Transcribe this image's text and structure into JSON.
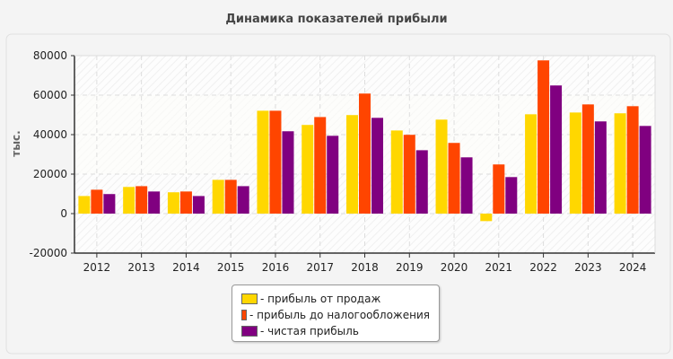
{
  "chart_data": {
    "type": "bar",
    "title": "Динамика показателей прибыли",
    "ylabel": "тыс.",
    "xlabel": "",
    "ylim": [
      -20000,
      80000
    ],
    "yticks": [
      "-20000",
      "0",
      "20000",
      "40000",
      "60000",
      "80000"
    ],
    "grid": true,
    "legend_position": "bottom",
    "categories": [
      "2012",
      "2013",
      "2014",
      "2015",
      "2016",
      "2017",
      "2018",
      "2019",
      "2020",
      "2021",
      "2022",
      "2023",
      "2024"
    ],
    "series": [
      {
        "name": "- прибыль от продаж",
        "color": "#FFD700",
        "values": [
          8900,
          13500,
          10800,
          17100,
          52100,
          44900,
          49900,
          42100,
          47600,
          -3800,
          50300,
          51200,
          50800
        ]
      },
      {
        "name": "- прибыль до налогообложения",
        "color": "#FF4500",
        "values": [
          12100,
          13900,
          11200,
          17100,
          52100,
          48900,
          60800,
          39900,
          35800,
          24900,
          77600,
          55300,
          54400
        ]
      },
      {
        "name": "- чистая прибыль",
        "color": "#800080",
        "values": [
          9900,
          11200,
          8900,
          13900,
          41700,
          39400,
          48500,
          32100,
          28500,
          18500,
          64900,
          46700,
          44400
        ]
      }
    ]
  }
}
